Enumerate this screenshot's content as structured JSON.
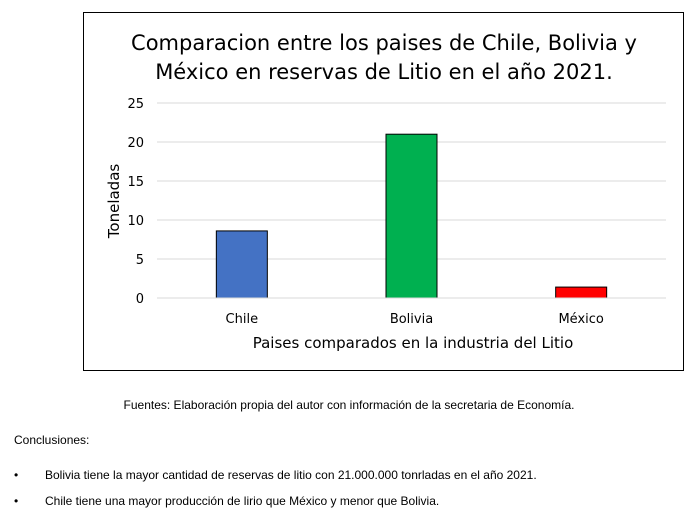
{
  "chart_data": {
    "type": "bar",
    "title_lines": [
      "Comparacion entre los paises de Chile, Bolivia y",
      "México en reservas de Litio en el año 2021."
    ],
    "xlabel": "Paises comparados en la industria del Litio",
    "ylabel": "Toneladas",
    "categories": [
      "Chile",
      "Bolivia",
      "México"
    ],
    "values": [
      8.6,
      21,
      1.4
    ],
    "colors": [
      "#4472C4",
      "#00B050",
      "#FF0000"
    ],
    "ylim": [
      0,
      25
    ],
    "yticks": [
      0,
      5,
      10,
      15,
      20,
      25
    ],
    "grid": true,
    "legend": "none"
  },
  "source_note": "Fuentes: Elaboración propia del autor con información de la secretaria de Economía.",
  "conclusions": {
    "heading": "Conclusiones:",
    "bullet": "•",
    "items": [
      "Bolivia tiene la mayor cantidad de reservas de litio con 21.000.000 tonrladas en el año 2021.",
      "Chile tiene una mayor producción de lirio que México y menor que Bolivia."
    ]
  }
}
